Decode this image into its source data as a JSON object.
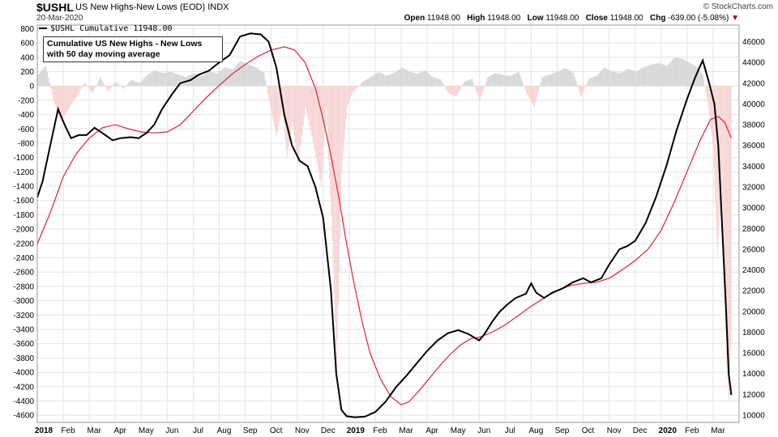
{
  "header": {
    "symbol": "$USHL",
    "description": "US New Highs-New Lows (EOD)",
    "exchange": "INDX",
    "date": "20-Mar-2020",
    "credit": "© StockCharts.com",
    "open_label": "Open",
    "open": "11948.00",
    "high_label": "High",
    "high": "11948.00",
    "low_label": "Low",
    "low": "11948.00",
    "close_label": "Close",
    "close": "11948.00",
    "chg_label": "Chg",
    "chg": "-639.00 (-5.08%)"
  },
  "legend": {
    "text": "$USHL Cumulative 11948.00"
  },
  "annotation": {
    "line1": "Cumulative US New Highs - New Lows",
    "line2": "with 50 day moving average"
  },
  "colors": {
    "cumulative": "#000000",
    "ma50": "#e0213a",
    "pos_area": "#d8d8d8",
    "neg_area": "#f7d6d6",
    "grid": "#e4e4e4"
  },
  "chart_data": {
    "type": "line",
    "left_axis": {
      "ylim": [
        -4700,
        850
      ],
      "ticks": [
        800,
        600,
        400,
        200,
        0,
        -200,
        -400,
        -600,
        -800,
        -1000,
        -1200,
        -1400,
        -1600,
        -1800,
        -2000,
        -2200,
        -2400,
        -2600,
        -2800,
        -3000,
        -3200,
        -3400,
        -3600,
        -3800,
        -4000,
        -4200,
        -4400,
        -4600
      ]
    },
    "right_axis": {
      "ylim": [
        9300,
        47600
      ],
      "ticks": [
        46000,
        44000,
        42000,
        40000,
        38000,
        36000,
        34000,
        32000,
        30000,
        28000,
        26000,
        24000,
        22000,
        20000,
        18000,
        16000,
        14000,
        12000,
        10000
      ]
    },
    "x_tick_labels": [
      "2018",
      "Feb",
      "Mar",
      "Apr",
      "May",
      "Jun",
      "Jul",
      "Aug",
      "Sep",
      "Oct",
      "Nov",
      "Dec",
      "2019",
      "Feb",
      "Mar",
      "Apr",
      "May",
      "Jun",
      "Jul",
      "Aug",
      "Sep",
      "Oct",
      "Nov",
      "Dec",
      "2020",
      "Feb",
      "Mar"
    ],
    "x_tick_months": [
      0,
      1,
      2,
      3,
      4,
      5,
      6,
      7,
      8,
      9,
      10,
      11,
      12,
      13,
      14,
      15,
      16,
      17,
      18,
      19,
      20,
      21,
      22,
      23,
      24,
      25,
      26
    ],
    "xlim_months": [
      0,
      26.7
    ],
    "series": [
      {
        "name": "$USHL Cumulative",
        "axis": "right",
        "points": [
          [
            0,
            31000
          ],
          [
            0.2,
            32500
          ],
          [
            0.5,
            36000
          ],
          [
            0.8,
            39500
          ],
          [
            1.05,
            38000
          ],
          [
            1.3,
            36700
          ],
          [
            1.6,
            37000
          ],
          [
            1.9,
            37000
          ],
          [
            2.2,
            37700
          ],
          [
            2.5,
            37200
          ],
          [
            2.9,
            36500
          ],
          [
            3.2,
            36700
          ],
          [
            3.6,
            36800
          ],
          [
            3.9,
            36700
          ],
          [
            4.2,
            37200
          ],
          [
            4.5,
            38000
          ],
          [
            4.8,
            39500
          ],
          [
            5.2,
            41000
          ],
          [
            5.5,
            42000
          ],
          [
            5.9,
            42300
          ],
          [
            6.2,
            42800
          ],
          [
            6.6,
            43200
          ],
          [
            7.0,
            44000
          ],
          [
            7.4,
            44700
          ],
          [
            7.8,
            46500
          ],
          [
            8.2,
            46800
          ],
          [
            8.6,
            46700
          ],
          [
            8.9,
            46000
          ],
          [
            9.2,
            43500
          ],
          [
            9.5,
            39000
          ],
          [
            9.8,
            36000
          ],
          [
            10.1,
            34500
          ],
          [
            10.4,
            34000
          ],
          [
            10.7,
            32000
          ],
          [
            11.0,
            29000
          ],
          [
            11.3,
            22000
          ],
          [
            11.5,
            14000
          ],
          [
            11.7,
            10500
          ],
          [
            11.9,
            9900
          ],
          [
            12.2,
            9800
          ],
          [
            12.6,
            9850
          ],
          [
            13.0,
            10300
          ],
          [
            13.4,
            11300
          ],
          [
            13.8,
            12700
          ],
          [
            14.2,
            13800
          ],
          [
            14.6,
            15000
          ],
          [
            15.0,
            16200
          ],
          [
            15.4,
            17200
          ],
          [
            15.8,
            17900
          ],
          [
            16.2,
            18200
          ],
          [
            16.6,
            17800
          ],
          [
            17.0,
            17200
          ],
          [
            17.2,
            17800
          ],
          [
            17.5,
            19000
          ],
          [
            17.8,
            20000
          ],
          [
            18.1,
            20700
          ],
          [
            18.4,
            21300
          ],
          [
            18.8,
            21700
          ],
          [
            19.0,
            22700
          ],
          [
            19.2,
            21800
          ],
          [
            19.5,
            21300
          ],
          [
            19.8,
            21800
          ],
          [
            20.2,
            22200
          ],
          [
            20.6,
            22800
          ],
          [
            21.0,
            23200
          ],
          [
            21.3,
            22800
          ],
          [
            21.7,
            23200
          ],
          [
            22.0,
            24500
          ],
          [
            22.4,
            26000
          ],
          [
            22.7,
            26300
          ],
          [
            23.0,
            26800
          ],
          [
            23.4,
            28500
          ],
          [
            23.8,
            31000
          ],
          [
            24.2,
            34000
          ],
          [
            24.6,
            37500
          ],
          [
            25.0,
            40500
          ],
          [
            25.3,
            42500
          ],
          [
            25.6,
            44200
          ],
          [
            25.85,
            42000
          ],
          [
            26.05,
            40000
          ],
          [
            26.2,
            36000
          ],
          [
            26.35,
            28000
          ],
          [
            26.5,
            20000
          ],
          [
            26.6,
            14000
          ],
          [
            26.7,
            11948
          ]
        ]
      },
      {
        "name": "50 day moving average",
        "axis": "right",
        "points": [
          [
            0,
            26500
          ],
          [
            0.5,
            29500
          ],
          [
            1.0,
            33000
          ],
          [
            1.5,
            35200
          ],
          [
            2.0,
            36700
          ],
          [
            2.5,
            37700
          ],
          [
            3.0,
            38000
          ],
          [
            3.5,
            37600
          ],
          [
            4.0,
            37300
          ],
          [
            4.5,
            37200
          ],
          [
            5.0,
            37300
          ],
          [
            5.5,
            38000
          ],
          [
            6.0,
            39300
          ],
          [
            6.5,
            40600
          ],
          [
            7.0,
            41800
          ],
          [
            7.5,
            42900
          ],
          [
            8.0,
            43800
          ],
          [
            8.5,
            44600
          ],
          [
            9.0,
            45200
          ],
          [
            9.5,
            45500
          ],
          [
            9.9,
            45200
          ],
          [
            10.3,
            44000
          ],
          [
            10.7,
            41500
          ],
          [
            11.0,
            38500
          ],
          [
            11.3,
            35000
          ],
          [
            11.6,
            31000
          ],
          [
            11.9,
            26500
          ],
          [
            12.2,
            22500
          ],
          [
            12.5,
            19000
          ],
          [
            12.8,
            16000
          ],
          [
            13.2,
            13500
          ],
          [
            13.6,
            11800
          ],
          [
            14.0,
            11000
          ],
          [
            14.3,
            11300
          ],
          [
            14.7,
            12400
          ],
          [
            15.1,
            13600
          ],
          [
            15.5,
            14800
          ],
          [
            15.9,
            15900
          ],
          [
            16.3,
            16800
          ],
          [
            16.7,
            17400
          ],
          [
            17.0,
            17500
          ],
          [
            17.5,
            18000
          ],
          [
            18.0,
            18700
          ],
          [
            18.5,
            19600
          ],
          [
            19.0,
            20500
          ],
          [
            19.5,
            21300
          ],
          [
            20.0,
            22000
          ],
          [
            20.5,
            22500
          ],
          [
            21.0,
            22700
          ],
          [
            21.5,
            22800
          ],
          [
            22.0,
            23200
          ],
          [
            22.5,
            24000
          ],
          [
            23.0,
            24900
          ],
          [
            23.5,
            26000
          ],
          [
            24.0,
            27800
          ],
          [
            24.5,
            30500
          ],
          [
            25.0,
            33500
          ],
          [
            25.5,
            36500
          ],
          [
            25.9,
            38500
          ],
          [
            26.2,
            38800
          ],
          [
            26.45,
            38200
          ],
          [
            26.7,
            36700
          ]
        ]
      }
    ],
    "histogram": {
      "name": "US New Highs-New Lows (daily)",
      "axis": "left",
      "points": [
        [
          0,
          150
        ],
        [
          0.3,
          280
        ],
        [
          0.6,
          -200
        ],
        [
          0.9,
          -500
        ],
        [
          1.2,
          -300
        ],
        [
          1.5,
          -150
        ],
        [
          1.8,
          50
        ],
        [
          2.1,
          -100
        ],
        [
          2.4,
          120
        ],
        [
          2.7,
          -80
        ],
        [
          3.0,
          60
        ],
        [
          3.3,
          -40
        ],
        [
          3.6,
          90
        ],
        [
          3.9,
          40
        ],
        [
          4.2,
          150
        ],
        [
          4.5,
          220
        ],
        [
          4.8,
          180
        ],
        [
          5.1,
          200
        ],
        [
          5.4,
          160
        ],
        [
          5.7,
          120
        ],
        [
          6.0,
          180
        ],
        [
          6.3,
          140
        ],
        [
          6.6,
          210
        ],
        [
          6.9,
          170
        ],
        [
          7.2,
          260
        ],
        [
          7.5,
          230
        ],
        [
          7.8,
          350
        ],
        [
          8.1,
          300
        ],
        [
          8.4,
          260
        ],
        [
          8.7,
          180
        ],
        [
          9.0,
          -400
        ],
        [
          9.2,
          -700
        ],
        [
          9.4,
          -300
        ],
        [
          9.6,
          -1000
        ],
        [
          9.8,
          -500
        ],
        [
          10.0,
          -1100
        ],
        [
          10.3,
          -300
        ],
        [
          10.6,
          -800
        ],
        [
          10.9,
          -1400
        ],
        [
          11.1,
          -300
        ],
        [
          11.3,
          -1800
        ],
        [
          11.5,
          -4000
        ],
        [
          11.7,
          -1200
        ],
        [
          11.9,
          -300
        ],
        [
          12.1,
          -100
        ],
        [
          12.5,
          60
        ],
        [
          12.8,
          120
        ],
        [
          13.1,
          200
        ],
        [
          13.4,
          140
        ],
        [
          13.7,
          180
        ],
        [
          14.0,
          260
        ],
        [
          14.3,
          200
        ],
        [
          14.6,
          170
        ],
        [
          14.9,
          220
        ],
        [
          15.2,
          120
        ],
        [
          15.5,
          90
        ],
        [
          15.8,
          -100
        ],
        [
          16.1,
          -150
        ],
        [
          16.4,
          60
        ],
        [
          16.7,
          100
        ],
        [
          17.0,
          -200
        ],
        [
          17.3,
          120
        ],
        [
          17.6,
          180
        ],
        [
          17.9,
          150
        ],
        [
          18.2,
          140
        ],
        [
          18.5,
          200
        ],
        [
          18.8,
          -100
        ],
        [
          19.1,
          -300
        ],
        [
          19.4,
          120
        ],
        [
          19.7,
          160
        ],
        [
          20.0,
          200
        ],
        [
          20.3,
          250
        ],
        [
          20.6,
          180
        ],
        [
          20.9,
          -150
        ],
        [
          21.2,
          100
        ],
        [
          21.5,
          140
        ],
        [
          21.8,
          260
        ],
        [
          22.1,
          200
        ],
        [
          22.4,
          180
        ],
        [
          22.7,
          240
        ],
        [
          23.0,
          200
        ],
        [
          23.3,
          260
        ],
        [
          23.6,
          300
        ],
        [
          23.9,
          320
        ],
        [
          24.2,
          280
        ],
        [
          24.5,
          400
        ],
        [
          24.8,
          380
        ],
        [
          25.1,
          320
        ],
        [
          25.4,
          250
        ],
        [
          25.6,
          150
        ],
        [
          25.8,
          -300
        ],
        [
          26.0,
          -900
        ],
        [
          26.15,
          -2400
        ],
        [
          26.3,
          -1500
        ],
        [
          26.5,
          -3800
        ],
        [
          26.6,
          -4400
        ],
        [
          26.7,
          -3200
        ]
      ]
    }
  }
}
